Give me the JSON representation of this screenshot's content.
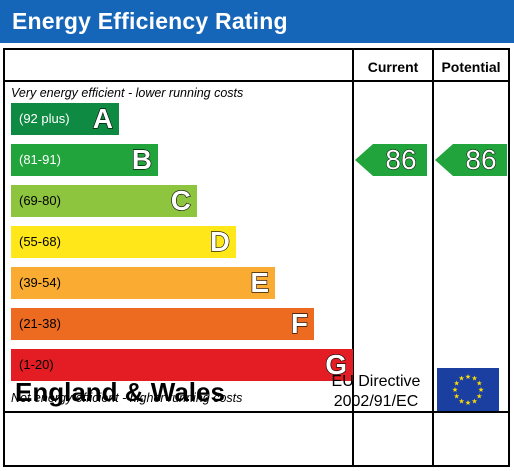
{
  "title": "Energy Efficiency Rating",
  "columns": {
    "current": "Current",
    "potential": "Potential"
  },
  "captions": {
    "top": "Very energy efficient - lower running costs",
    "bottom": "Not energy efficient - higher running costs"
  },
  "bands": [
    {
      "range": "(92 plus)",
      "letter": "A",
      "color": "#0f8a43",
      "text_color": "#ffffff"
    },
    {
      "range": "(81-91)",
      "letter": "B",
      "color": "#21a43c",
      "text_color": "#ffffff"
    },
    {
      "range": "(69-80)",
      "letter": "C",
      "color": "#8dc53f",
      "text_color": "#000000"
    },
    {
      "range": "(55-68)",
      "letter": "D",
      "color": "#ffe719",
      "text_color": "#000000"
    },
    {
      "range": "(39-54)",
      "letter": "E",
      "color": "#f9ab32",
      "text_color": "#000000"
    },
    {
      "range": "(21-38)",
      "letter": "F",
      "color": "#ec6b21",
      "text_color": "#000000"
    },
    {
      "range": "(1-20)",
      "letter": "G",
      "color": "#e31d23",
      "text_color": "#000000"
    }
  ],
  "ratings": {
    "current": {
      "value": "86",
      "band": "B"
    },
    "potential": {
      "value": "86",
      "band": "B"
    }
  },
  "footer": {
    "country": "England & Wales",
    "directive_line1": "EU Directive",
    "directive_line2": "2002/91/EC",
    "flag_icon": "eu-flag-icon"
  }
}
